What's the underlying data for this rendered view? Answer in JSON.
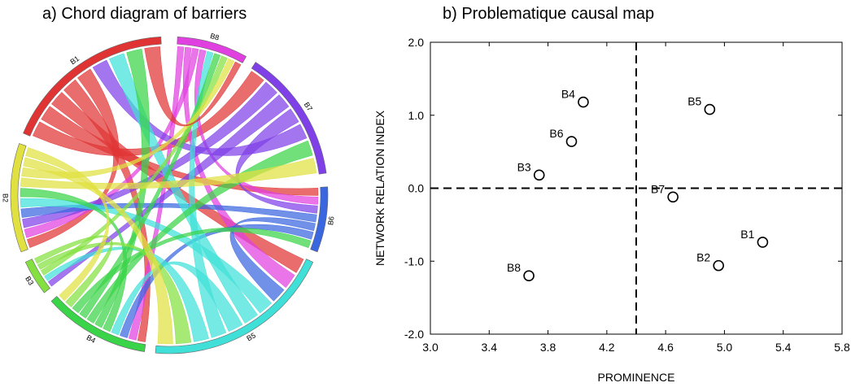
{
  "chart_data": [
    {
      "type": "chord",
      "title": "a) Chord diagram of barriers",
      "nodes": [
        {
          "id": "B1",
          "label": "B1",
          "color": "#e03434"
        },
        {
          "id": "B8",
          "label": "B8",
          "color": "#e040e0"
        },
        {
          "id": "B7",
          "label": "B7",
          "color": "#8040e8"
        },
        {
          "id": "B6",
          "label": "B6",
          "color": "#3a66e0"
        },
        {
          "id": "B5",
          "label": "B5",
          "color": "#40e0d8"
        },
        {
          "id": "B4",
          "label": "B4",
          "color": "#3ad448"
        },
        {
          "id": "B3",
          "label": "B3",
          "color": "#84e040"
        },
        {
          "id": "B2",
          "label": "B2",
          "color": "#e0e040"
        }
      ],
      "arc_angles": {
        "B1": [
          293,
          357
        ],
        "B8": [
          3,
          29
        ],
        "B7": [
          33,
          82
        ],
        "B6": [
          87,
          111
        ],
        "B5": [
          115,
          185
        ],
        "B4": [
          189,
          228
        ],
        "B3": [
          232,
          245
        ],
        "B2": [
          249,
          289
        ]
      },
      "links": [
        {
          "from": "B1",
          "to": "B7"
        },
        {
          "from": "B1",
          "to": "B6"
        },
        {
          "from": "B1",
          "to": "B5"
        },
        {
          "from": "B1",
          "to": "B4"
        },
        {
          "from": "B1",
          "to": "B2"
        },
        {
          "from": "B8",
          "to": "B4"
        },
        {
          "from": "B8",
          "to": "B5"
        },
        {
          "from": "B8",
          "to": "B2"
        },
        {
          "from": "B8",
          "to": "B6"
        },
        {
          "from": "B7",
          "to": "B2"
        },
        {
          "from": "B7",
          "to": "B3"
        },
        {
          "from": "B7",
          "to": "B6"
        },
        {
          "from": "B7",
          "to": "B1"
        },
        {
          "from": "B6",
          "to": "B2"
        },
        {
          "from": "B6",
          "to": "B5"
        },
        {
          "from": "B6",
          "to": "B4"
        },
        {
          "from": "B5",
          "to": "B2"
        },
        {
          "from": "B5",
          "to": "B1"
        },
        {
          "from": "B5",
          "to": "B4"
        },
        {
          "from": "B5",
          "to": "B8"
        },
        {
          "from": "B5",
          "to": "B3"
        },
        {
          "from": "B4",
          "to": "B2"
        },
        {
          "from": "B4",
          "to": "B1"
        },
        {
          "from": "B4",
          "to": "B7"
        },
        {
          "from": "B4",
          "to": "B8"
        },
        {
          "from": "B4",
          "to": "B6"
        },
        {
          "from": "B3",
          "to": "B8"
        },
        {
          "from": "B3",
          "to": "B5"
        },
        {
          "from": "B3",
          "to": "B4"
        },
        {
          "from": "B2",
          "to": "B7"
        },
        {
          "from": "B2",
          "to": "B8"
        },
        {
          "from": "B2",
          "to": "B5"
        },
        {
          "from": "B2",
          "to": "B4"
        },
        {
          "from": "B1",
          "to": "B8"
        }
      ]
    },
    {
      "type": "scatter",
      "title": "b) Problematique causal map",
      "xlabel": "PROMINENCE",
      "ylabel": "NETWORK RELATION INDEX",
      "xlim": [
        3.0,
        5.8
      ],
      "ylim": [
        -2.0,
        2.0
      ],
      "xticks": [
        3.0,
        3.4,
        3.8,
        4.2,
        4.6,
        5.0,
        5.4,
        5.8
      ],
      "yticks": [
        -2.0,
        -1.0,
        0.0,
        1.0,
        2.0
      ],
      "xtick_labels": [
        "3.0",
        "3.4",
        "3.8",
        "4.2",
        "4.6",
        "5.0",
        "5.4",
        "5.8"
      ],
      "ytick_labels": [
        "-2.0",
        "-1.0",
        "0.0",
        "1.0",
        "2.0"
      ],
      "threshold_x": 4.4,
      "threshold_y": 0.0,
      "points": [
        {
          "label": "B1",
          "x": 5.26,
          "y": -0.74
        },
        {
          "label": "B2",
          "x": 4.96,
          "y": -1.06
        },
        {
          "label": "B3",
          "x": 3.74,
          "y": 0.18
        },
        {
          "label": "B4",
          "x": 4.04,
          "y": 1.18
        },
        {
          "label": "B5",
          "x": 4.9,
          "y": 1.08
        },
        {
          "label": "B6",
          "x": 3.96,
          "y": 0.64
        },
        {
          "label": "B7",
          "x": 4.65,
          "y": -0.12
        },
        {
          "label": "B8",
          "x": 3.67,
          "y": -1.2
        }
      ]
    }
  ]
}
